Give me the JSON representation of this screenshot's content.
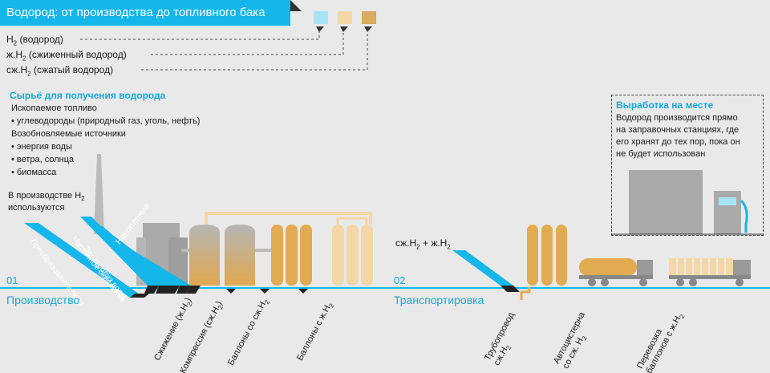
{
  "header": {
    "title": "Водород: от производства до топливного бака",
    "colors": {
      "accent": "#15b6e9",
      "h2": "#a6e4f5",
      "liquid": "#f3d7a6",
      "compressed": "#d9ab5c"
    }
  },
  "legend": {
    "items": [
      {
        "prefix": "H",
        "sub": "2",
        "suffix": " (водород)"
      },
      {
        "prefix": "ж.H",
        "sub": "2",
        "suffix": " (сжиженный водород)"
      },
      {
        "prefix": "сж.H",
        "sub": "2",
        "suffix": " (сжатый водород)"
      }
    ]
  },
  "raw_materials": {
    "heading": "Сырьё для получения водорода",
    "fossil": "Ископаемое топливо",
    "fossil_item": "• углеводороды (природный газ, уголь, нефть)",
    "renewable": "Возобновляемые источники",
    "renewable_items": [
      "• энергия воды",
      "• ветра, солнца",
      "• биомасса"
    ],
    "production_note_line1": "В производстве H",
    "production_note_sub": "2",
    "production_note_line2": "используются"
  },
  "methods": [
    "Накопление",
    "Электролиз воды",
    "Частичное окисление",
    "Преобразование пара"
  ],
  "onsite": {
    "heading": "Выработка на месте",
    "lines": [
      "Водород производится прямо",
      "на заправочных станциях, где",
      "его хранят до тех пор, пока он",
      "не будет использован"
    ]
  },
  "sections": {
    "production": {
      "number": "01",
      "label": "Производство"
    },
    "transport": {
      "number": "02",
      "label": "Транспортировка"
    }
  },
  "transport_input": {
    "a": "сж.H",
    "a_sub": "2",
    "plus": " + ",
    "b": "ж.H",
    "b_sub": "2"
  },
  "production_steps": [
    {
      "text": "Сжижение (ж.H",
      "sub": "2",
      "end": ")"
    },
    {
      "text": "Компрессия (сж.H",
      "sub": "2",
      "end": ")"
    },
    {
      "text": "Баллоны со сж.H",
      "sub": "2",
      "end": ""
    },
    {
      "text": "Баллоны с ж.H",
      "sub": "2",
      "end": ""
    }
  ],
  "transport_steps": [
    {
      "line1": "Трубопровод",
      "line2": "сж.H",
      "sub": "2"
    },
    {
      "line1": "Автоцистерна",
      "line2": "со сж. H",
      "sub": "2"
    },
    {
      "line1": "Перевозка",
      "line2": "баллонов с ж.H",
      "sub": "2"
    }
  ]
}
